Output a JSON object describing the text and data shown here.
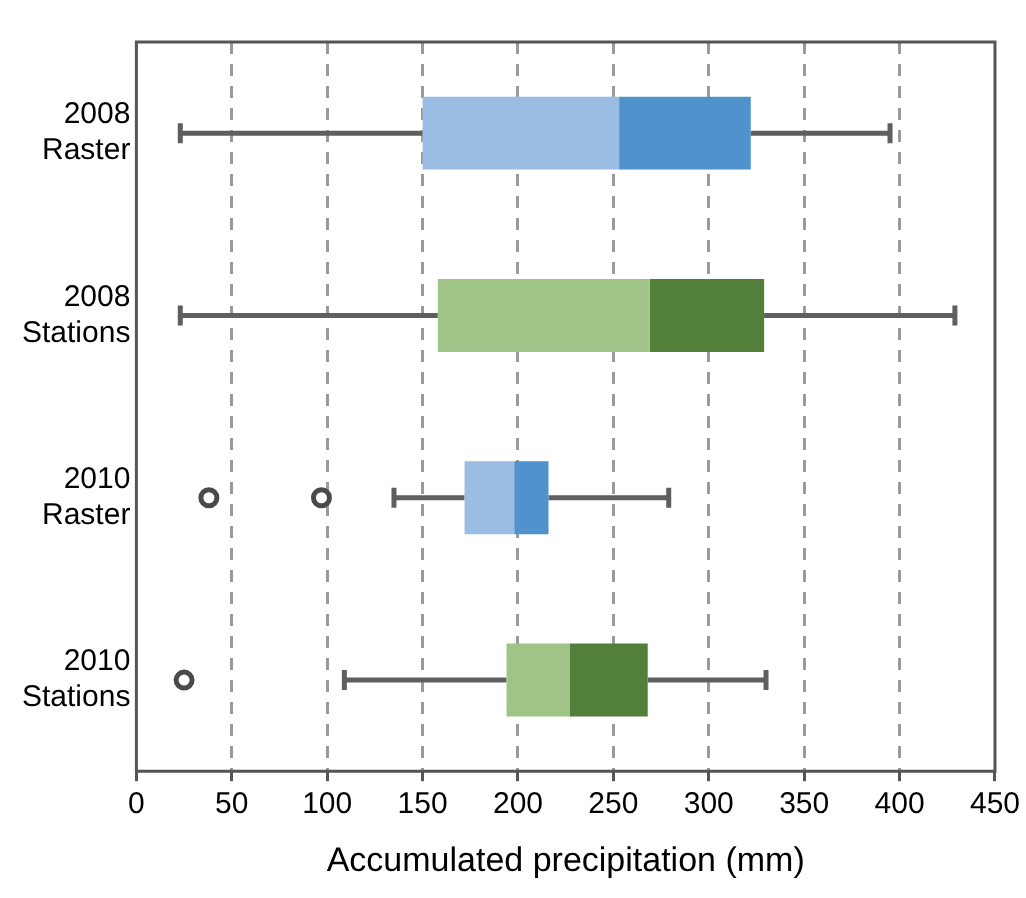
{
  "chart_data": {
    "type": "box",
    "orientation": "horizontal",
    "xlabel": "Accumulated precipitation (mm)",
    "categories": [
      "2008 Raster",
      "2008 Stations",
      "2010 Raster",
      "2010 Stations"
    ],
    "boxes": [
      {
        "low": 23,
        "q1": 150,
        "median": 253,
        "q3": 322,
        "high": 395
      },
      {
        "low": 23,
        "q1": 158,
        "median": 269,
        "q3": 329,
        "high": 429
      },
      {
        "low": 135,
        "q1": 172,
        "median": 198,
        "q3": 216,
        "high": 279,
        "outliers": [
          38,
          97
        ]
      },
      {
        "low": 109,
        "q1": 194,
        "median": 227,
        "q3": 268,
        "high": 330,
        "outliers": [
          25
        ]
      }
    ],
    "colors": [
      [
        "#9bbde3",
        "#5092cc"
      ],
      [
        "#a0c388",
        "#52803a"
      ],
      [
        "#9bbde3",
        "#5092cc"
      ],
      [
        "#a0c388",
        "#52803a"
      ]
    ],
    "xlim": [
      0,
      450
    ],
    "xticks": [
      0,
      50,
      100,
      150,
      200,
      250,
      300,
      350,
      400,
      450
    ],
    "grid": "x"
  }
}
